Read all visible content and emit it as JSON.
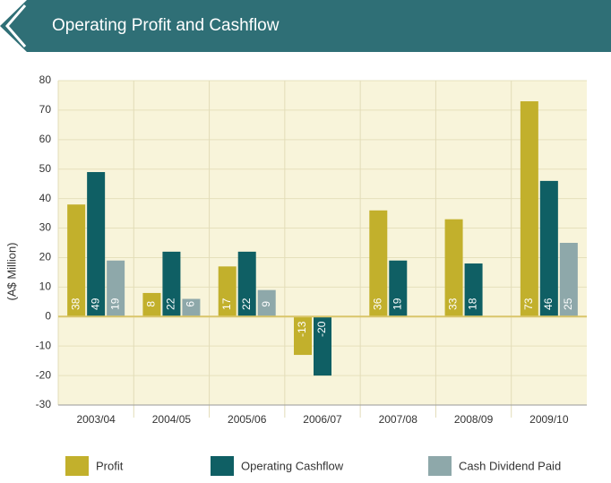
{
  "chart_data": {
    "type": "bar",
    "title": "Operating Profit and Cashflow",
    "ylabel": "(A$ Million)",
    "categories": [
      "2003/04",
      "2004/05",
      "2005/06",
      "2006/07",
      "2007/08",
      "2008/09",
      "2009/10"
    ],
    "series": [
      {
        "name": "Profit",
        "color": "#c2b02c",
        "values": [
          38,
          8,
          17,
          -13,
          36,
          33,
          73
        ]
      },
      {
        "name": "Operating Cashflow",
        "color": "#0f5f64",
        "values": [
          49,
          22,
          22,
          -20,
          19,
          18,
          46
        ]
      },
      {
        "name": "Cash Dividend Paid",
        "color": "#8ea8aa",
        "values": [
          19,
          6,
          9,
          null,
          null,
          null,
          25
        ]
      }
    ],
    "ylim": [
      -30,
      80
    ],
    "yticks": [
      -30,
      -20,
      -10,
      0,
      10,
      20,
      30,
      40,
      50,
      60,
      70,
      80
    ],
    "grid": true
  }
}
